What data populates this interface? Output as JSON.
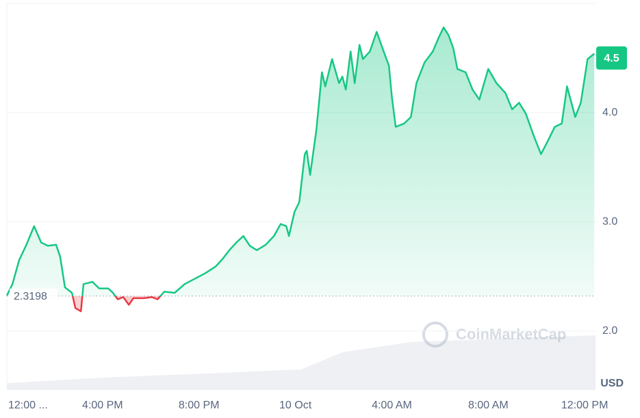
{
  "chart_data": {
    "type": "line",
    "watermark": "CoinMarketCap",
    "unit_label": "USD",
    "reference_value": 2.3198,
    "current_value": 4.5,
    "grid": true,
    "xlim": [
      0,
      24.45
    ],
    "ylim": [
      1.46,
      5.0
    ],
    "xticks": [
      {
        "value": 0,
        "label": "12:00 ..."
      },
      {
        "value": 4,
        "label": "4:00 PM"
      },
      {
        "value": 8,
        "label": "8:00 PM"
      },
      {
        "value": 12,
        "label": "10 Oct"
      },
      {
        "value": 16,
        "label": "4:00 AM"
      },
      {
        "value": 20,
        "label": "8:00 AM"
      },
      {
        "value": 24,
        "label": "12:00 PM"
      }
    ],
    "yticks": [
      {
        "value": 2,
        "label": "2.0"
      },
      {
        "value": 3,
        "label": "3.0"
      },
      {
        "value": 4,
        "label": "4.0"
      }
    ],
    "series": [
      {
        "color": "#16c784",
        "down_color": "#ea3943",
        "x": [
          0.03,
          0.26,
          0.54,
          0.82,
          1.16,
          1.45,
          1.73,
          2.07,
          2.24,
          2.44,
          2.73,
          2.87,
          3.1,
          3.21,
          3.58,
          3.86,
          4.23,
          4.43,
          4.63,
          4.86,
          5.09,
          5.28,
          5.71,
          6.05,
          6.28,
          6.56,
          6.99,
          7.41,
          7.84,
          8.27,
          8.69,
          8.98,
          9.26,
          9.55,
          9.84,
          10.11,
          10.4,
          10.77,
          11.11,
          11.39,
          11.62,
          11.73,
          11.96,
          12.16,
          12.39,
          12.47,
          12.61,
          12.87,
          13.1,
          13.24,
          13.52,
          13.81,
          13.95,
          14.09,
          14.29,
          14.46,
          14.66,
          14.8,
          15.09,
          15.37,
          15.66,
          15.88,
          16.0,
          16.16,
          16.51,
          16.79,
          17.02,
          17.36,
          17.7,
          17.93,
          18.15,
          18.35,
          18.55,
          18.72,
          19.06,
          19.35,
          19.63,
          20.0,
          20.34,
          20.71,
          20.99,
          21.28,
          21.56,
          21.9,
          22.19,
          22.47,
          22.76,
          23.05,
          23.27,
          23.61,
          23.84,
          24.12,
          24.4
        ],
        "values": [
          2.325,
          2.43,
          2.65,
          2.78,
          2.96,
          2.81,
          2.78,
          2.79,
          2.68,
          2.4,
          2.35,
          2.21,
          2.18,
          2.43,
          2.45,
          2.39,
          2.39,
          2.35,
          2.29,
          2.31,
          2.24,
          2.3,
          2.3,
          2.31,
          2.29,
          2.36,
          2.35,
          2.43,
          2.48,
          2.53,
          2.59,
          2.66,
          2.74,
          2.81,
          2.87,
          2.78,
          2.74,
          2.79,
          2.87,
          2.98,
          2.96,
          2.87,
          3.09,
          3.18,
          3.62,
          3.65,
          3.43,
          3.84,
          4.37,
          4.24,
          4.49,
          4.27,
          4.33,
          4.21,
          4.56,
          4.27,
          4.62,
          4.49,
          4.56,
          4.74,
          4.56,
          4.43,
          4.15,
          3.87,
          3.9,
          3.96,
          4.27,
          4.46,
          4.56,
          4.68,
          4.78,
          4.71,
          4.59,
          4.4,
          4.37,
          4.21,
          4.12,
          4.4,
          4.27,
          4.18,
          4.03,
          4.09,
          3.99,
          3.78,
          3.62,
          3.74,
          3.87,
          3.9,
          4.24,
          3.96,
          4.09,
          4.49,
          4.54
        ]
      }
    ]
  }
}
